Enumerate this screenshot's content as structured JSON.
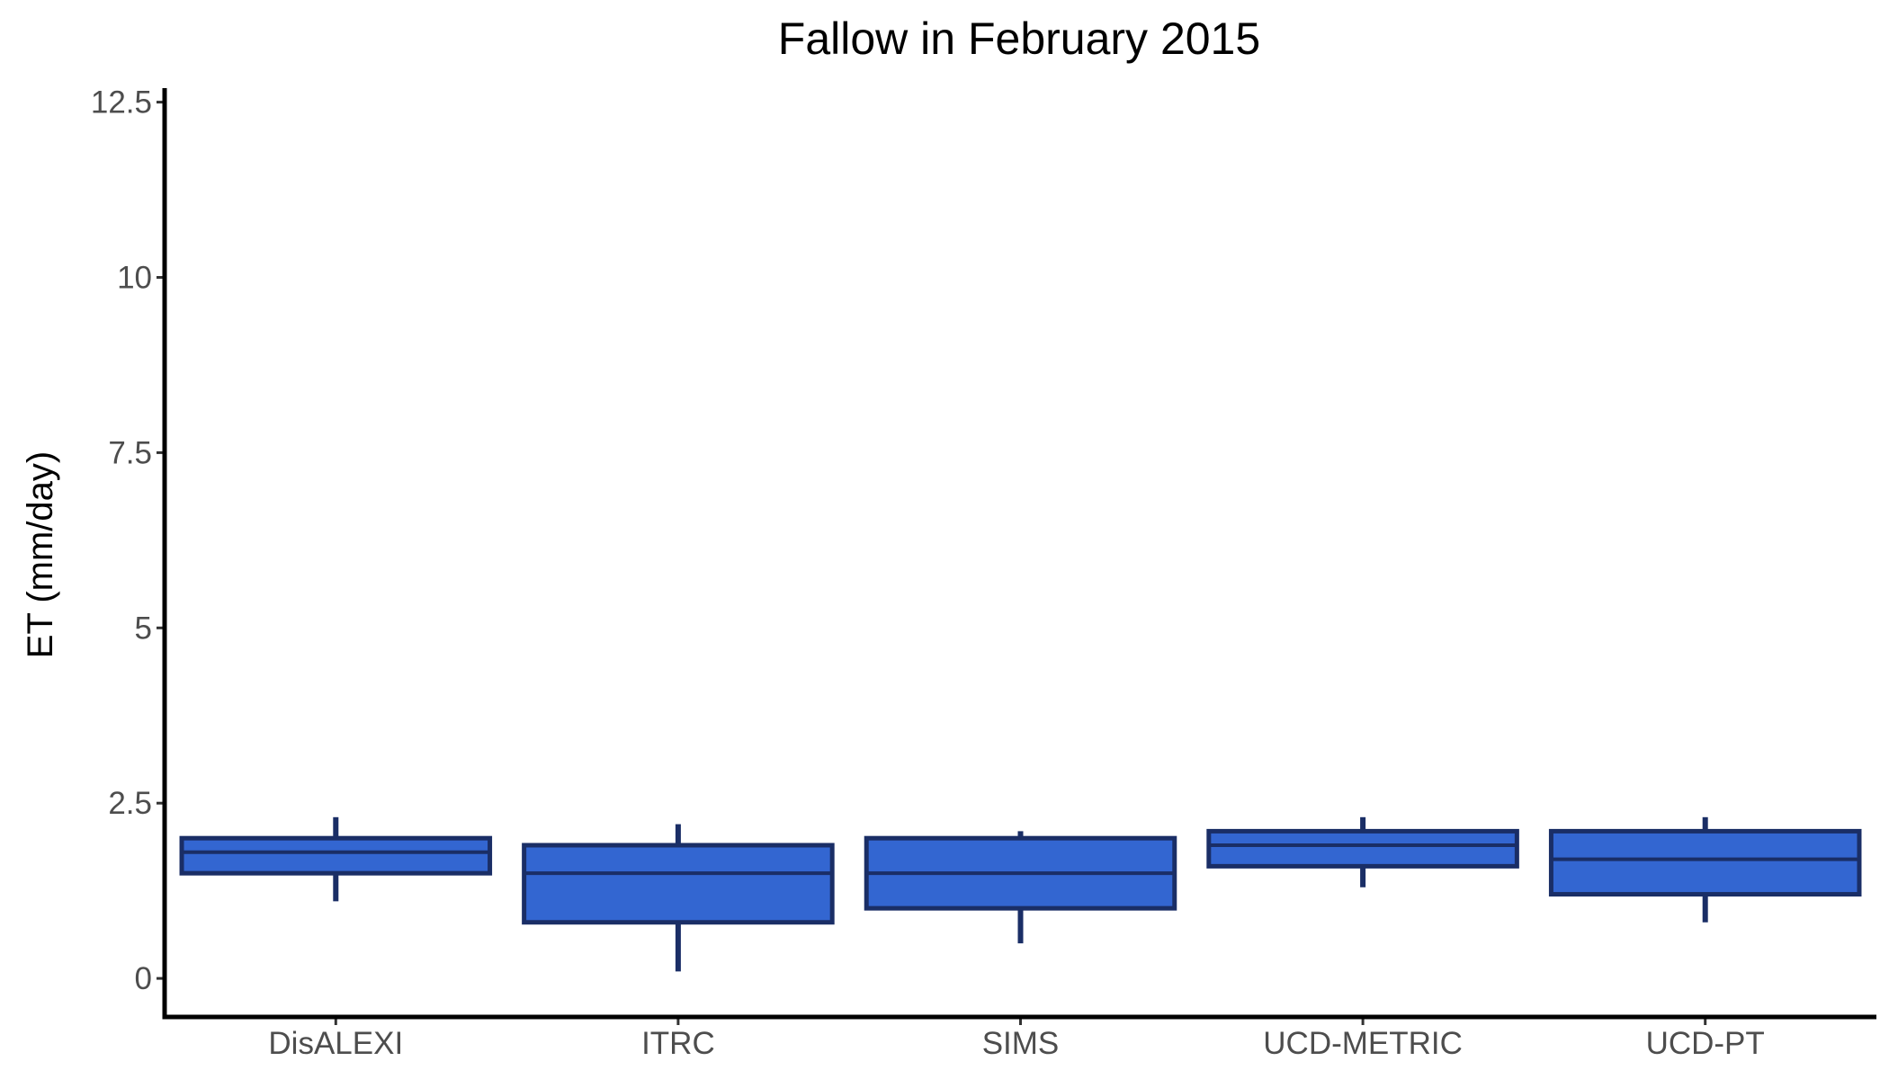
{
  "chart_data": {
    "type": "boxplot",
    "title": "Fallow in February 2015",
    "xlabel": "",
    "ylabel": "ET (mm/day)",
    "ylim": [
      -0.55,
      12.7
    ],
    "y_ticks": [
      0,
      2.5,
      5,
      7.5,
      10,
      12.5
    ],
    "y_tick_labels": [
      "0",
      "2.5",
      "5",
      "7.5",
      "10",
      "12.5"
    ],
    "grid": false,
    "legend": "none",
    "categories": [
      "DisALEXI",
      "ITRC",
      "SIMS",
      "UCD-METRIC",
      "UCD-PT"
    ],
    "boxes": [
      {
        "category": "DisALEXI",
        "whisker_low": 1.1,
        "q1": 1.5,
        "median": 1.8,
        "q3": 2.0,
        "whisker_high": 2.3
      },
      {
        "category": "ITRC",
        "whisker_low": 0.1,
        "q1": 0.8,
        "median": 1.5,
        "q3": 1.9,
        "whisker_high": 2.2
      },
      {
        "category": "SIMS",
        "whisker_low": 0.5,
        "q1": 1.0,
        "median": 1.5,
        "q3": 2.0,
        "whisker_high": 2.1
      },
      {
        "category": "UCD-METRIC",
        "whisker_low": 1.3,
        "q1": 1.6,
        "median": 1.9,
        "q3": 2.1,
        "whisker_high": 2.3
      },
      {
        "category": "UCD-PT",
        "whisker_low": 0.8,
        "q1": 1.2,
        "median": 1.7,
        "q3": 2.1,
        "whisker_high": 2.3
      }
    ],
    "colors": {
      "box_fill": "#3366d1",
      "box_stroke": "#1a2e66",
      "axis": "#000000",
      "tick_text": "#4d4d4d"
    }
  }
}
